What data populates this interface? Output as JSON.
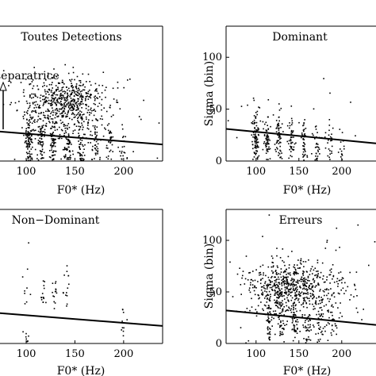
{
  "chart_data": [
    {
      "type": "scatter",
      "title": "Toutes Detections",
      "xlabel": "F0* (Hz)",
      "ylabel": "",
      "xlim": [
        65,
        240
      ],
      "ylim": [
        0,
        130
      ],
      "xticks": [
        100,
        150,
        200
      ],
      "yticks": [],
      "annotation": "separatrice",
      "regression_line": [
        [
          65,
          29
        ],
        [
          240,
          16
        ]
      ],
      "clusters": [
        {
          "x": 103,
          "y": 22,
          "count": 110,
          "sx": 2.0,
          "sy": 13
        },
        {
          "x": 115,
          "y": 20,
          "count": 70,
          "sx": 2.0,
          "sy": 12
        },
        {
          "x": 128,
          "y": 19,
          "count": 65,
          "sx": 2.0,
          "sy": 12
        },
        {
          "x": 142,
          "y": 17,
          "count": 55,
          "sx": 2.0,
          "sy": 11
        },
        {
          "x": 156,
          "y": 16,
          "count": 45,
          "sx": 2.0,
          "sy": 11
        },
        {
          "x": 171,
          "y": 15,
          "count": 35,
          "sx": 2.0,
          "sy": 10
        },
        {
          "x": 186,
          "y": 14,
          "count": 25,
          "sx": 2.0,
          "sy": 10
        },
        {
          "x": 200,
          "y": 12,
          "count": 18,
          "sx": 2.0,
          "sy": 9
        },
        {
          "x": 140,
          "y": 58,
          "count": 480,
          "sx": 20,
          "sy": 11
        },
        {
          "x": 150,
          "y": 45,
          "count": 180,
          "sx": 32,
          "sy": 22
        }
      ]
    },
    {
      "type": "scatter",
      "title": "Dominant",
      "xlabel": "F0* (Hz)",
      "ylabel": "Sigma (bin)",
      "xlim": [
        65,
        240
      ],
      "ylim": [
        0,
        130
      ],
      "xticks": [
        100,
        150,
        200
      ],
      "yticks": [
        0,
        50,
        100
      ],
      "regression_line": [
        [
          65,
          31
        ],
        [
          240,
          17
        ]
      ],
      "clusters": [
        {
          "x": 100,
          "y": 24,
          "count": 100,
          "sx": 2.0,
          "sy": 13
        },
        {
          "x": 113,
          "y": 22,
          "count": 60,
          "sx": 2.0,
          "sy": 12
        },
        {
          "x": 127,
          "y": 21,
          "count": 55,
          "sx": 2.0,
          "sy": 12
        },
        {
          "x": 141,
          "y": 20,
          "count": 45,
          "sx": 2.0,
          "sy": 11
        },
        {
          "x": 156,
          "y": 18,
          "count": 38,
          "sx": 2.0,
          "sy": 11
        },
        {
          "x": 171,
          "y": 17,
          "count": 30,
          "sx": 2.0,
          "sy": 10
        },
        {
          "x": 186,
          "y": 15,
          "count": 22,
          "sx": 2.0,
          "sy": 10
        },
        {
          "x": 200,
          "y": 14,
          "count": 15,
          "sx": 2.0,
          "sy": 9
        },
        {
          "x": 140,
          "y": 40,
          "count": 25,
          "sx": 30,
          "sy": 20
        }
      ]
    },
    {
      "type": "scatter",
      "title": "Non−Dominant",
      "xlabel": "F0* (Hz)",
      "ylabel": "",
      "xlim": [
        65,
        240
      ],
      "ylim": [
        0,
        130
      ],
      "xticks": [
        100,
        150,
        200
      ],
      "yticks": [],
      "regression_line": [
        [
          65,
          30
        ],
        [
          240,
          17
        ]
      ],
      "clusters": [
        {
          "x": 118,
          "y": 48,
          "count": 14,
          "sx": 2.0,
          "sy": 9
        },
        {
          "x": 130,
          "y": 52,
          "count": 14,
          "sx": 2.0,
          "sy": 10
        },
        {
          "x": 142,
          "y": 55,
          "count": 14,
          "sx": 2.0,
          "sy": 10
        },
        {
          "x": 100,
          "y": 55,
          "count": 10,
          "sx": 2.0,
          "sy": 30
        },
        {
          "x": 100,
          "y": 5,
          "count": 8,
          "sx": 2.0,
          "sy": 4
        },
        {
          "x": 200,
          "y": 20,
          "count": 10,
          "sx": 2.0,
          "sy": 10
        }
      ]
    },
    {
      "type": "scatter",
      "title": "Erreurs",
      "xlabel": "F0* (Hz)",
      "ylabel": "Sigma (bin)",
      "xlim": [
        65,
        240
      ],
      "ylim": [
        0,
        130
      ],
      "xticks": [
        100,
        150,
        200
      ],
      "yticks": [
        0,
        50,
        100
      ],
      "regression_line": [
        [
          65,
          32
        ],
        [
          240,
          18
        ]
      ],
      "clusters": [
        {
          "x": 140,
          "y": 54,
          "count": 520,
          "sx": 24,
          "sy": 12
        },
        {
          "x": 150,
          "y": 45,
          "count": 220,
          "sx": 38,
          "sy": 25
        },
        {
          "x": 115,
          "y": 20,
          "count": 40,
          "sx": 2.0,
          "sy": 10
        },
        {
          "x": 130,
          "y": 19,
          "count": 40,
          "sx": 2.0,
          "sy": 10
        },
        {
          "x": 145,
          "y": 18,
          "count": 35,
          "sx": 2.0,
          "sy": 10
        },
        {
          "x": 160,
          "y": 17,
          "count": 30,
          "sx": 2.0,
          "sy": 10
        },
        {
          "x": 175,
          "y": 16,
          "count": 25,
          "sx": 2.0,
          "sy": 10
        },
        {
          "x": 190,
          "y": 15,
          "count": 20,
          "sx": 2.0,
          "sy": 10
        }
      ]
    }
  ]
}
